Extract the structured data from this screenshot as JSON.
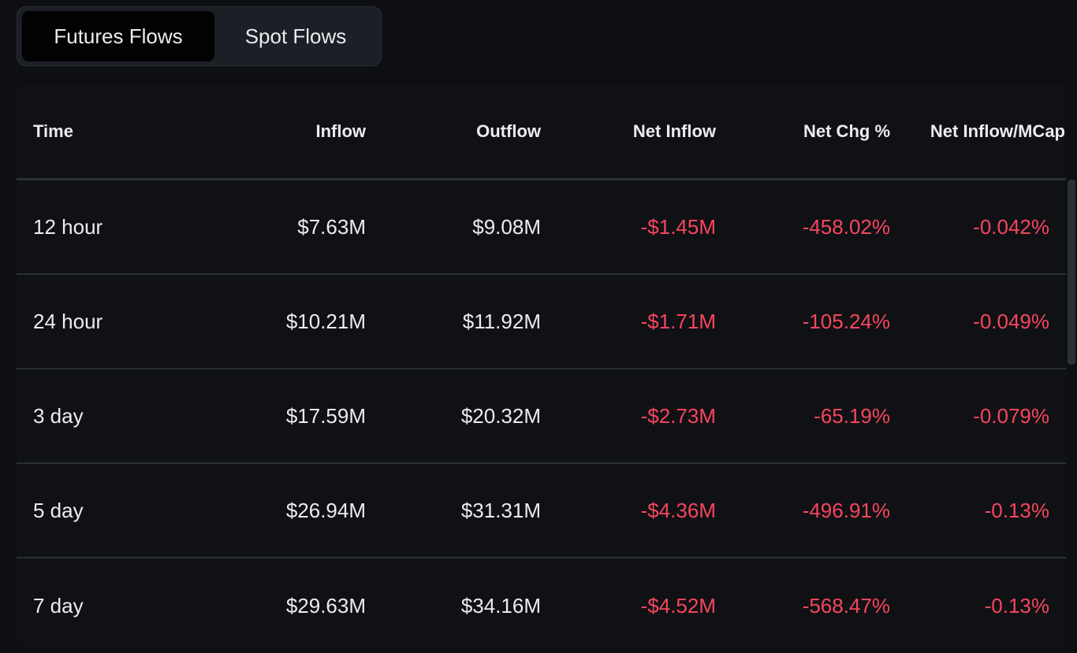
{
  "tabs": {
    "futures_label": "Futures Flows",
    "spot_label": "Spot Flows"
  },
  "table": {
    "headers": {
      "time": "Time",
      "inflow": "Inflow",
      "outflow": "Outflow",
      "net_inflow": "Net Inflow",
      "net_chg": "Net Chg %",
      "net_inflow_mcap": "Net Inflow/MCap"
    },
    "rows": [
      {
        "time": "12 hour",
        "inflow": "$7.63M",
        "outflow": "$9.08M",
        "net_inflow": "-$1.45M",
        "net_chg": "-458.02%",
        "net_inflow_mcap": "-0.042%"
      },
      {
        "time": "24 hour",
        "inflow": "$10.21M",
        "outflow": "$11.92M",
        "net_inflow": "-$1.71M",
        "net_chg": "-105.24%",
        "net_inflow_mcap": "-0.049%"
      },
      {
        "time": "3 day",
        "inflow": "$17.59M",
        "outflow": "$20.32M",
        "net_inflow": "-$2.73M",
        "net_chg": "-65.19%",
        "net_inflow_mcap": "-0.079%"
      },
      {
        "time": "5 day",
        "inflow": "$26.94M",
        "outflow": "$31.31M",
        "net_inflow": "-$4.36M",
        "net_chg": "-496.91%",
        "net_inflow_mcap": "-0.13%"
      },
      {
        "time": "7 day",
        "inflow": "$29.63M",
        "outflow": "$34.16M",
        "net_inflow": "-$4.52M",
        "net_chg": "-568.47%",
        "net_inflow_mcap": "-0.13%"
      }
    ]
  },
  "colors": {
    "background": "#0e0f13",
    "negative": "#f6465d",
    "text": "#eaecef"
  }
}
